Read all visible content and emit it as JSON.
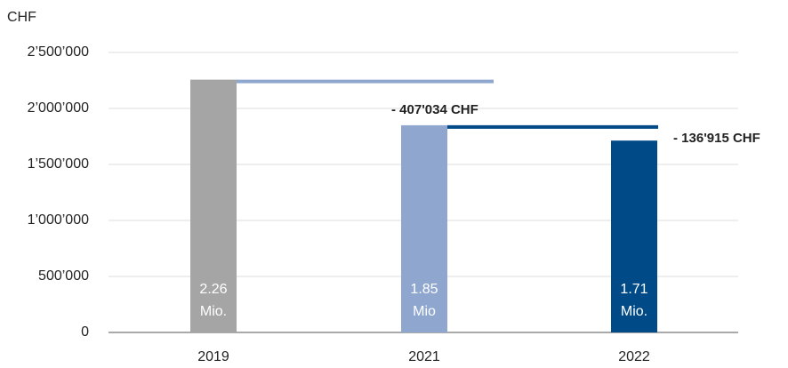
{
  "chart_data": {
    "type": "bar",
    "ylabel": "CHF",
    "categories": [
      "2019",
      "2021",
      "2022"
    ],
    "values": [
      2257000,
      1849966,
      1713051
    ],
    "value_labels": [
      [
        "2.26",
        "Mio."
      ],
      [
        "1.85",
        "Mio"
      ],
      [
        "1.71",
        "Mio."
      ]
    ],
    "colors": [
      "#a5a5a5",
      "#8fa7cf",
      "#004a87"
    ],
    "annotations": [
      "- 407'034 CHF",
      "- 136'915 CHF"
    ],
    "ylim": [
      0,
      2500000
    ],
    "yticks": [
      {
        "value": 0,
        "label": "0"
      },
      {
        "value": 500000,
        "label": "500’000"
      },
      {
        "value": 1000000,
        "label": "1’000’000"
      },
      {
        "value": 1500000,
        "label": "1’500’000"
      },
      {
        "value": 2000000,
        "label": "2’000’000"
      },
      {
        "value": 2500000,
        "label": "2’500’000"
      }
    ],
    "grid": true
  }
}
